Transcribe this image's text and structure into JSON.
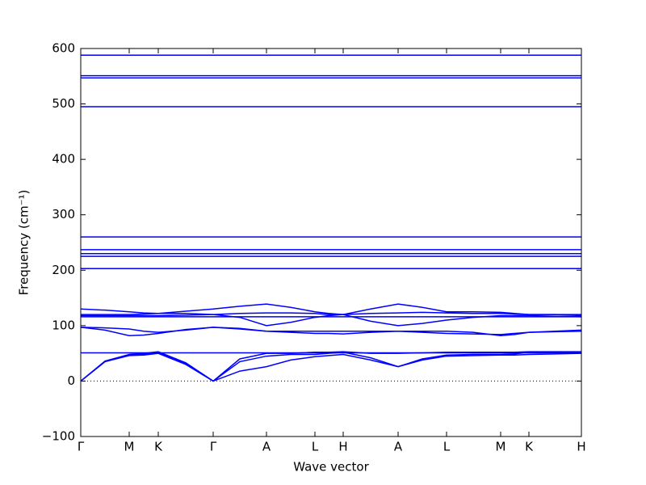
{
  "chart_data": {
    "type": "line",
    "xlabel": "Wave vector",
    "ylabel": "Frequency (cm⁻¹)",
    "x": [
      0,
      30,
      60,
      78,
      96,
      130,
      164,
      197,
      230,
      260,
      290,
      307,
      325,
      359,
      393,
      423,
      453,
      486,
      520,
      537,
      555,
      587,
      620
    ],
    "xlim": [
      0,
      620
    ],
    "xticks": [
      {
        "value": 0,
        "label": "Γ"
      },
      {
        "value": 60,
        "label": "M"
      },
      {
        "value": 96,
        "label": "K"
      },
      {
        "value": 164,
        "label": "Γ"
      },
      {
        "value": 230,
        "label": "A"
      },
      {
        "value": 290,
        "label": "L"
      },
      {
        "value": 325,
        "label": "H"
      },
      {
        "value": 393,
        "label": "A"
      },
      {
        "value": 453,
        "label": "L"
      },
      {
        "value": 520,
        "label": "M"
      },
      {
        "value": 555,
        "label": "K"
      },
      {
        "value": 620,
        "label": "H"
      }
    ],
    "ylim": [
      -100,
      600
    ],
    "yticks": [
      {
        "value": -100,
        "label": "−100"
      },
      0,
      100,
      200,
      300,
      400,
      500,
      600
    ],
    "zero_line": true,
    "series": [
      {
        "color": "#0000ff",
        "values": [
          0,
          35,
          46,
          47,
          50,
          30,
          0,
          18,
          26,
          38,
          44,
          46,
          48,
          38,
          26,
          38,
          45,
          46,
          47,
          47,
          48,
          49,
          50
        ]
      },
      {
        "color": "#0000ff",
        "values": [
          0,
          35,
          47,
          48,
          52,
          32,
          0,
          35,
          45,
          48,
          48,
          50,
          52,
          42,
          26,
          40,
          47,
          48,
          48,
          49,
          52,
          52,
          52
        ]
      },
      {
        "color": "#0000ff",
        "values": [
          0,
          36,
          48,
          50,
          53,
          33,
          0,
          40,
          50,
          50,
          52,
          52,
          53,
          50,
          50,
          51,
          52,
          52,
          52,
          52,
          53,
          53,
          53
        ]
      },
      {
        "color": "#0000ff",
        "values": [
          51,
          51,
          51,
          51,
          51,
          51,
          51,
          51,
          51,
          51,
          51,
          51,
          51,
          51,
          51,
          51,
          51,
          51,
          51,
          51,
          51,
          51,
          51
        ]
      },
      {
        "color": "#0000ff",
        "values": [
          97,
          96,
          94,
          90,
          88,
          92,
          97,
          95,
          90,
          88,
          86,
          86,
          85,
          88,
          90,
          88,
          86,
          85,
          84,
          86,
          88,
          89,
          90
        ]
      },
      {
        "color": "#0000ff",
        "values": [
          97,
          92,
          82,
          83,
          86,
          93,
          97,
          94,
          90,
          90,
          90,
          90,
          90,
          90,
          90,
          90,
          90,
          88,
          82,
          84,
          88,
          90,
          92
        ]
      },
      {
        "color": "#0000ff",
        "values": [
          130,
          128,
          125,
          123,
          122,
          126,
          130,
          135,
          139,
          133,
          125,
          122,
          120,
          130,
          139,
          133,
          125,
          125,
          124,
          122,
          120,
          120,
          118
        ]
      },
      {
        "color": "#0000ff",
        "values": [
          120,
          120,
          120,
          121,
          122,
          122,
          120,
          115,
          100,
          106,
          115,
          118,
          120,
          108,
          100,
          104,
          110,
          115,
          118,
          118,
          118,
          117,
          116
        ]
      },
      {
        "color": "#0000ff",
        "values": [
          118,
          118,
          118,
          118,
          118,
          119,
          120,
          122,
          123,
          123,
          122,
          120,
          120,
          122,
          123,
          124,
          123,
          122,
          122,
          121,
          120,
          120,
          120
        ]
      },
      {
        "color": "#0000ff",
        "values": [
          116,
          116,
          116,
          116,
          116,
          116,
          116,
          116,
          116,
          116,
          116,
          116,
          116,
          116,
          116,
          116,
          116,
          116,
          116,
          116,
          116,
          116,
          116
        ]
      },
      {
        "color": "#0000ff",
        "values": [
          203,
          203,
          203,
          203,
          203,
          203,
          203,
          203,
          203,
          203,
          203,
          203,
          203,
          203,
          203,
          203,
          203,
          203,
          203,
          203,
          203,
          203,
          203
        ]
      },
      {
        "color": "#0000ff",
        "values": [
          225,
          225,
          225,
          225,
          225,
          225,
          225,
          225,
          225,
          225,
          225,
          225,
          225,
          225,
          225,
          225,
          225,
          225,
          225,
          225,
          225,
          225,
          225
        ]
      },
      {
        "color": "#0000ff",
        "values": [
          230,
          230,
          230,
          230,
          230,
          230,
          230,
          230,
          230,
          230,
          230,
          230,
          230,
          230,
          230,
          230,
          230,
          230,
          230,
          230,
          230,
          230,
          230
        ]
      },
      {
        "color": "#0000ff",
        "values": [
          237,
          237,
          237,
          237,
          237,
          237,
          237,
          237,
          237,
          237,
          237,
          237,
          237,
          237,
          237,
          237,
          237,
          237,
          237,
          237,
          237,
          237,
          237
        ]
      },
      {
        "color": "#0000ff",
        "values": [
          260,
          260,
          260,
          260,
          260,
          260,
          260,
          260,
          260,
          260,
          260,
          260,
          260,
          260,
          260,
          260,
          260,
          260,
          260,
          260,
          260,
          260,
          260
        ]
      },
      {
        "color": "#0000ff",
        "values": [
          495,
          495,
          495,
          495,
          495,
          495,
          495,
          495,
          495,
          495,
          495,
          495,
          495,
          495,
          495,
          495,
          495,
          495,
          495,
          495,
          495,
          495,
          495
        ]
      },
      {
        "color": "#0000ff",
        "values": [
          547,
          547,
          547,
          547,
          547,
          547,
          547,
          547,
          547,
          547,
          547,
          547,
          547,
          547,
          547,
          547,
          547,
          547,
          547,
          547,
          547,
          547,
          547
        ]
      },
      {
        "color": "#0000ff",
        "values": [
          551,
          551,
          551,
          551,
          551,
          551,
          551,
          551,
          551,
          551,
          551,
          551,
          551,
          551,
          551,
          551,
          551,
          551,
          551,
          551,
          551,
          551,
          551
        ]
      },
      {
        "color": "#0000ff",
        "values": [
          588,
          588,
          588,
          588,
          588,
          588,
          588,
          588,
          588,
          588,
          588,
          588,
          588,
          588,
          588,
          588,
          588,
          588,
          588,
          588,
          588,
          588,
          588
        ]
      }
    ]
  }
}
